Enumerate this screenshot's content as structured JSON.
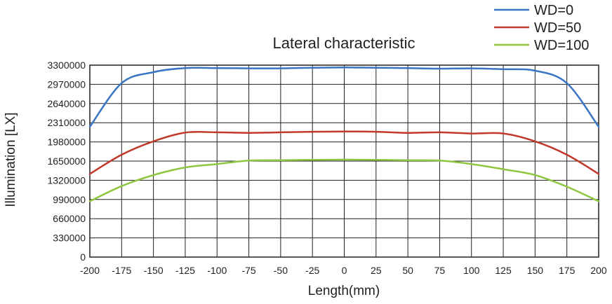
{
  "chart_data": {
    "type": "line",
    "title": "Lateral characteristic",
    "xlabel": "Length(mm)",
    "ylabel": "Illumination [LX]",
    "xlim": [
      -200,
      200
    ],
    "ylim": [
      0,
      3300000
    ],
    "x_ticks": [
      "-200",
      "-175",
      "-150",
      "-125",
      "-100",
      "-75",
      "-50",
      "-25",
      "0",
      "25",
      "50",
      "75",
      "100",
      "125",
      "150",
      "175",
      "200"
    ],
    "y_ticks": [
      "0",
      "330000",
      "660000",
      "990000",
      "1320000",
      "1650000",
      "1980000",
      "2310000",
      "2640000",
      "2970000",
      "3300000"
    ],
    "x_tick_values": [
      -200,
      -175,
      -150,
      -125,
      -100,
      -75,
      -50,
      -25,
      0,
      25,
      50,
      75,
      100,
      125,
      150,
      175,
      200
    ],
    "y_tick_values": [
      0,
      330000,
      660000,
      990000,
      1320000,
      1650000,
      1980000,
      2310000,
      2640000,
      2970000,
      3300000
    ],
    "grid": true,
    "legend_position": "top-right",
    "x": [
      -200,
      -175,
      -150,
      -125,
      -100,
      -75,
      -50,
      -25,
      0,
      25,
      50,
      75,
      100,
      125,
      150,
      175,
      200
    ],
    "series": [
      {
        "name": "WD=0",
        "color": "#3a75c4",
        "values": [
          2240000,
          2990000,
          3180000,
          3250000,
          3250000,
          3245000,
          3245000,
          3255000,
          3260000,
          3255000,
          3250000,
          3240000,
          3245000,
          3230000,
          3205000,
          2990000,
          2240000
        ]
      },
      {
        "name": "WD=50",
        "color": "#c0392b",
        "values": [
          1430000,
          1760000,
          1990000,
          2140000,
          2145000,
          2135000,
          2145000,
          2155000,
          2160000,
          2155000,
          2135000,
          2145000,
          2125000,
          2125000,
          1990000,
          1760000,
          1430000
        ]
      },
      {
        "name": "WD=100",
        "color": "#8dc63f",
        "values": [
          960000,
          1220000,
          1410000,
          1540000,
          1600000,
          1660000,
          1665000,
          1670000,
          1675000,
          1670000,
          1665000,
          1660000,
          1600000,
          1510000,
          1410000,
          1210000,
          960000
        ]
      }
    ]
  }
}
